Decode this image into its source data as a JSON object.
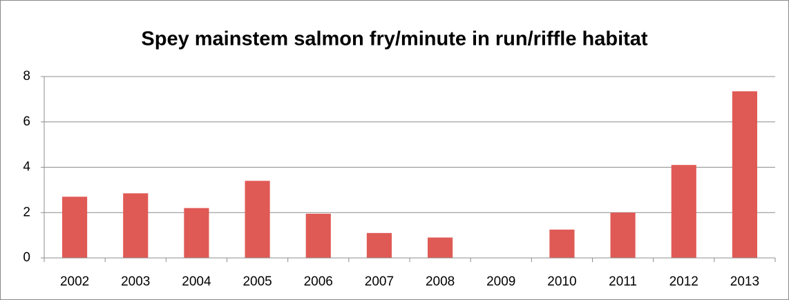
{
  "chart_data": {
    "type": "bar",
    "title": "Spey mainstem salmon fry/minute in run/riffle habitat",
    "categories": [
      "2002",
      "2003",
      "2004",
      "2005",
      "2006",
      "2007",
      "2008",
      "2009",
      "2010",
      "2011",
      "2012",
      "2013"
    ],
    "values": [
      2.7,
      2.85,
      2.2,
      3.4,
      1.95,
      1.1,
      0.9,
      0,
      1.25,
      2.0,
      4.1,
      7.35
    ],
    "color": "#e05a55",
    "ylim": [
      0,
      8
    ],
    "yticks": [
      0,
      2,
      4,
      6,
      8
    ],
    "grid": true
  }
}
